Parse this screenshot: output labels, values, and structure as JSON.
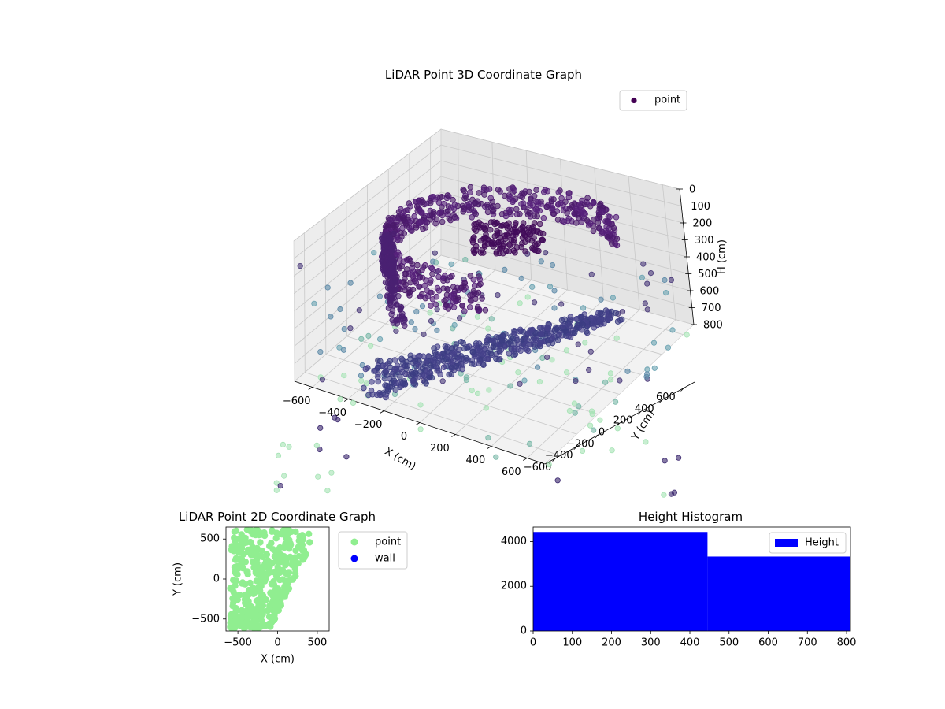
{
  "chart_data": [
    {
      "type": "scatter",
      "title": "LiDAR Point 3D Coordinate Graph",
      "xlabel": "X (cm)",
      "ylabel": "Y (cm)",
      "zlabel": "H (cm)",
      "xlim": [
        -700,
        700
      ],
      "ylim": [
        -700,
        700
      ],
      "zlim": [
        800,
        0
      ],
      "x_ticks": [
        -600,
        -400,
        -200,
        0,
        200,
        400,
        600
      ],
      "y_ticks": [
        -600,
        -400,
        -200,
        0,
        200,
        400,
        600
      ],
      "z_ticks": [
        0,
        100,
        200,
        300,
        400,
        500,
        600,
        700,
        800
      ],
      "grid": true,
      "legend": "top-right",
      "series": [
        {
          "name": "point",
          "color": "#440154"
        }
      ]
    },
    {
      "type": "scatter",
      "title": "LiDAR Point 2D Coordinate Graph",
      "xlabel": "X (cm)",
      "ylabel": "Y (cm)",
      "xlim": [
        -650,
        650
      ],
      "ylim": [
        -650,
        650
      ],
      "x_ticks": [
        -500,
        0,
        500
      ],
      "y_ticks": [
        -500,
        0,
        500
      ],
      "legend": "outside-right",
      "series": [
        {
          "name": "point",
          "color": "#90ee90"
        },
        {
          "name": "wall",
          "color": "#0000ff"
        }
      ]
    },
    {
      "type": "bar",
      "title": "Height Histogram",
      "xlim": [
        0,
        810
      ],
      "ylim": [
        0,
        4650
      ],
      "x_ticks": [
        0,
        100,
        200,
        300,
        400,
        500,
        600,
        700,
        800
      ],
      "y_ticks": [
        0,
        2000,
        4000
      ],
      "legend": "top-right",
      "bins": [
        {
          "from": 0,
          "to": 445,
          "count": 4430
        },
        {
          "from": 445,
          "to": 810,
          "count": 3330
        }
      ],
      "series": [
        {
          "name": "Height",
          "color": "#0000ff"
        }
      ]
    }
  ]
}
